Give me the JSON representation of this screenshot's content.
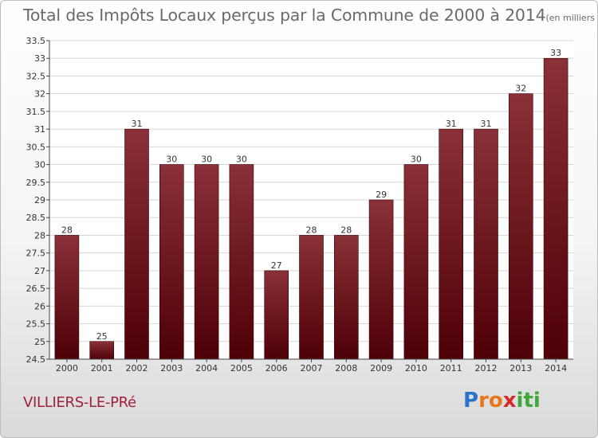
{
  "header": {
    "title": "Total des Impôts Locaux perçus par la Commune de 2000 à 2014",
    "unit": "(en milliers d'€)"
  },
  "footer": {
    "commune": "VILLIERS-LE-PRé",
    "logo": {
      "letters": [
        "P",
        "r",
        "o",
        "x",
        "i",
        "t",
        "i"
      ],
      "colors": [
        "#2a73c8",
        "#e8761b",
        "#e8761b",
        "#d62a2a",
        "#3fa83b",
        "#3fa83b",
        "#3fa83b"
      ]
    }
  },
  "colors": {
    "bar_top": "#8a3038",
    "bar_bottom": "#4e0006",
    "axis": "#444444",
    "grid": "#d6d6d6"
  },
  "chart_data": {
    "type": "bar",
    "title": "Total des Impôts Locaux perçus par la Commune de 2000 à 2014",
    "xlabel": "",
    "ylabel": "",
    "categories": [
      "2000",
      "2001",
      "2002",
      "2003",
      "2004",
      "2005",
      "2006",
      "2007",
      "2008",
      "2009",
      "2010",
      "2011",
      "2012",
      "2013",
      "2014"
    ],
    "values": [
      28,
      25,
      31,
      30,
      30,
      30,
      27,
      28,
      28,
      29,
      30,
      31,
      31,
      32,
      33
    ],
    "ylim": [
      24.5,
      33.5
    ],
    "yticks": [
      "24.5",
      "25",
      "25.5",
      "26",
      "26.5",
      "27",
      "27.5",
      "28",
      "28.5",
      "29",
      "29.5",
      "30",
      "30.5",
      "31",
      "31.5",
      "32",
      "32.5",
      "33",
      "33.5"
    ],
    "grid": true
  }
}
